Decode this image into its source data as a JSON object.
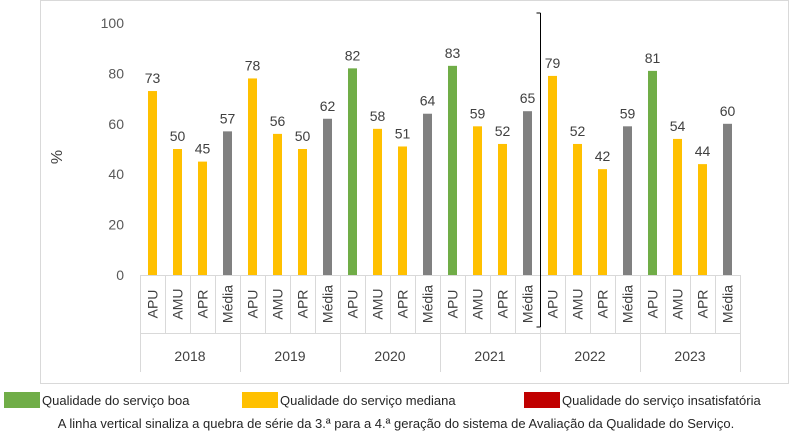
{
  "chart_data": {
    "type": "bar",
    "ylabel": "%",
    "ylim": [
      0,
      100
    ],
    "yticks": [
      "0",
      "20",
      "40",
      "60",
      "80",
      "100"
    ],
    "grid": false,
    "groups": [
      "2018",
      "2019",
      "2020",
      "2021",
      "2022",
      "2023"
    ],
    "subcategories": [
      "APU",
      "AMU",
      "APR",
      "Média"
    ],
    "values": [
      [
        73,
        50,
        45,
        57
      ],
      [
        78,
        56,
        50,
        62
      ],
      [
        82,
        58,
        51,
        64
      ],
      [
        83,
        59,
        52,
        65
      ],
      [
        79,
        52,
        42,
        59
      ],
      [
        81,
        54,
        44,
        60
      ]
    ],
    "quality": [
      [
        "mediana",
        "mediana",
        "mediana",
        "media"
      ],
      [
        "mediana",
        "mediana",
        "mediana",
        "media"
      ],
      [
        "boa",
        "mediana",
        "mediana",
        "media"
      ],
      [
        "boa",
        "mediana",
        "mediana",
        "media"
      ],
      [
        "mediana",
        "mediana",
        "mediana",
        "media"
      ],
      [
        "boa",
        "mediana",
        "mediana",
        "media"
      ]
    ],
    "colors": {
      "boa": "#70ad47",
      "mediana": "#ffc000",
      "insatisfatoria": "#c00000",
      "media": "#808080"
    },
    "series_break_after_group": "2021",
    "legend": [
      {
        "label": "Qualidade do serviço boa",
        "color": "#70ad47"
      },
      {
        "label": "Qualidade do serviço mediana",
        "color": "#ffc000"
      },
      {
        "label": "Qualidade do serviço insatisfatória",
        "color": "#c00000"
      }
    ],
    "note": "A linha vertical sinaliza a quebra de série da 3.ª para a 4.ª geração do sistema de Avaliação da Qualidade do Serviço."
  }
}
